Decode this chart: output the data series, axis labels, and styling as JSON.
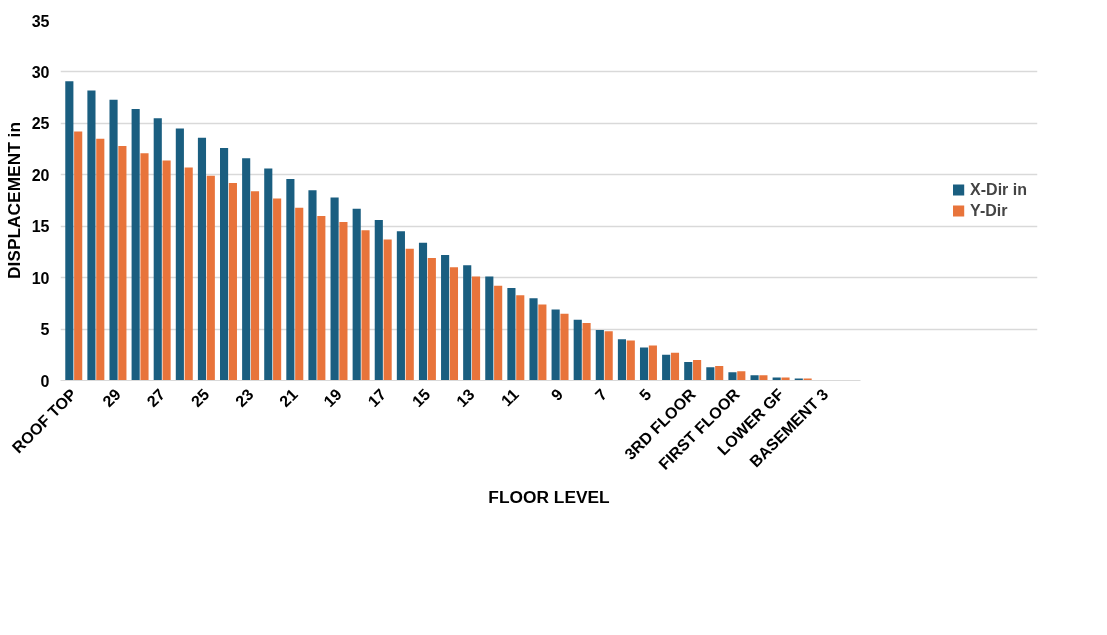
{
  "chart_data": {
    "type": "bar",
    "xlabel": "FLOOR LEVEL",
    "ylabel": "DISPLACEMENT in",
    "categories": [
      "ROOF TOP",
      null,
      "29",
      null,
      "27",
      null,
      "25",
      null,
      "23",
      null,
      "21",
      null,
      "19",
      null,
      "17",
      null,
      "15",
      null,
      "13",
      null,
      "11",
      null,
      "9",
      null,
      "7",
      null,
      "5",
      null,
      "3RD FLOOR",
      null,
      "FIRST FLOOR",
      null,
      "LOWER GF",
      null,
      "BASEMENT 3",
      null
    ],
    "series": [
      {
        "name": "X-Dir in",
        "color": "#1a5e80",
        "values": [
          29.1,
          28.2,
          27.3,
          26.4,
          25.5,
          24.5,
          23.6,
          22.6,
          21.6,
          20.6,
          19.6,
          18.5,
          17.8,
          16.7,
          15.6,
          14.5,
          13.4,
          12.2,
          11.2,
          10.1,
          9.0,
          8.0,
          6.9,
          5.9,
          4.9,
          4.0,
          3.2,
          2.5,
          1.8,
          1.3,
          0.8,
          0.5,
          0.3,
          0.2,
          null,
          0.0
        ]
      },
      {
        "name": "Y-Dir",
        "color": "#e8743b",
        "values": [
          24.2,
          23.5,
          22.8,
          22.1,
          21.4,
          20.7,
          19.9,
          19.2,
          18.4,
          17.7,
          16.8,
          16.0,
          15.4,
          14.6,
          13.7,
          12.8,
          11.9,
          11.0,
          10.1,
          9.2,
          8.3,
          7.4,
          6.5,
          5.6,
          4.8,
          3.9,
          3.4,
          2.7,
          2.0,
          1.4,
          0.9,
          0.5,
          0.3,
          0.2,
          null,
          0.0
        ]
      }
    ],
    "ylim": [
      0,
      35
    ],
    "yticks": [
      0,
      5,
      10,
      15,
      20,
      25,
      30,
      35
    ],
    "grid": "y",
    "legend": "right"
  }
}
